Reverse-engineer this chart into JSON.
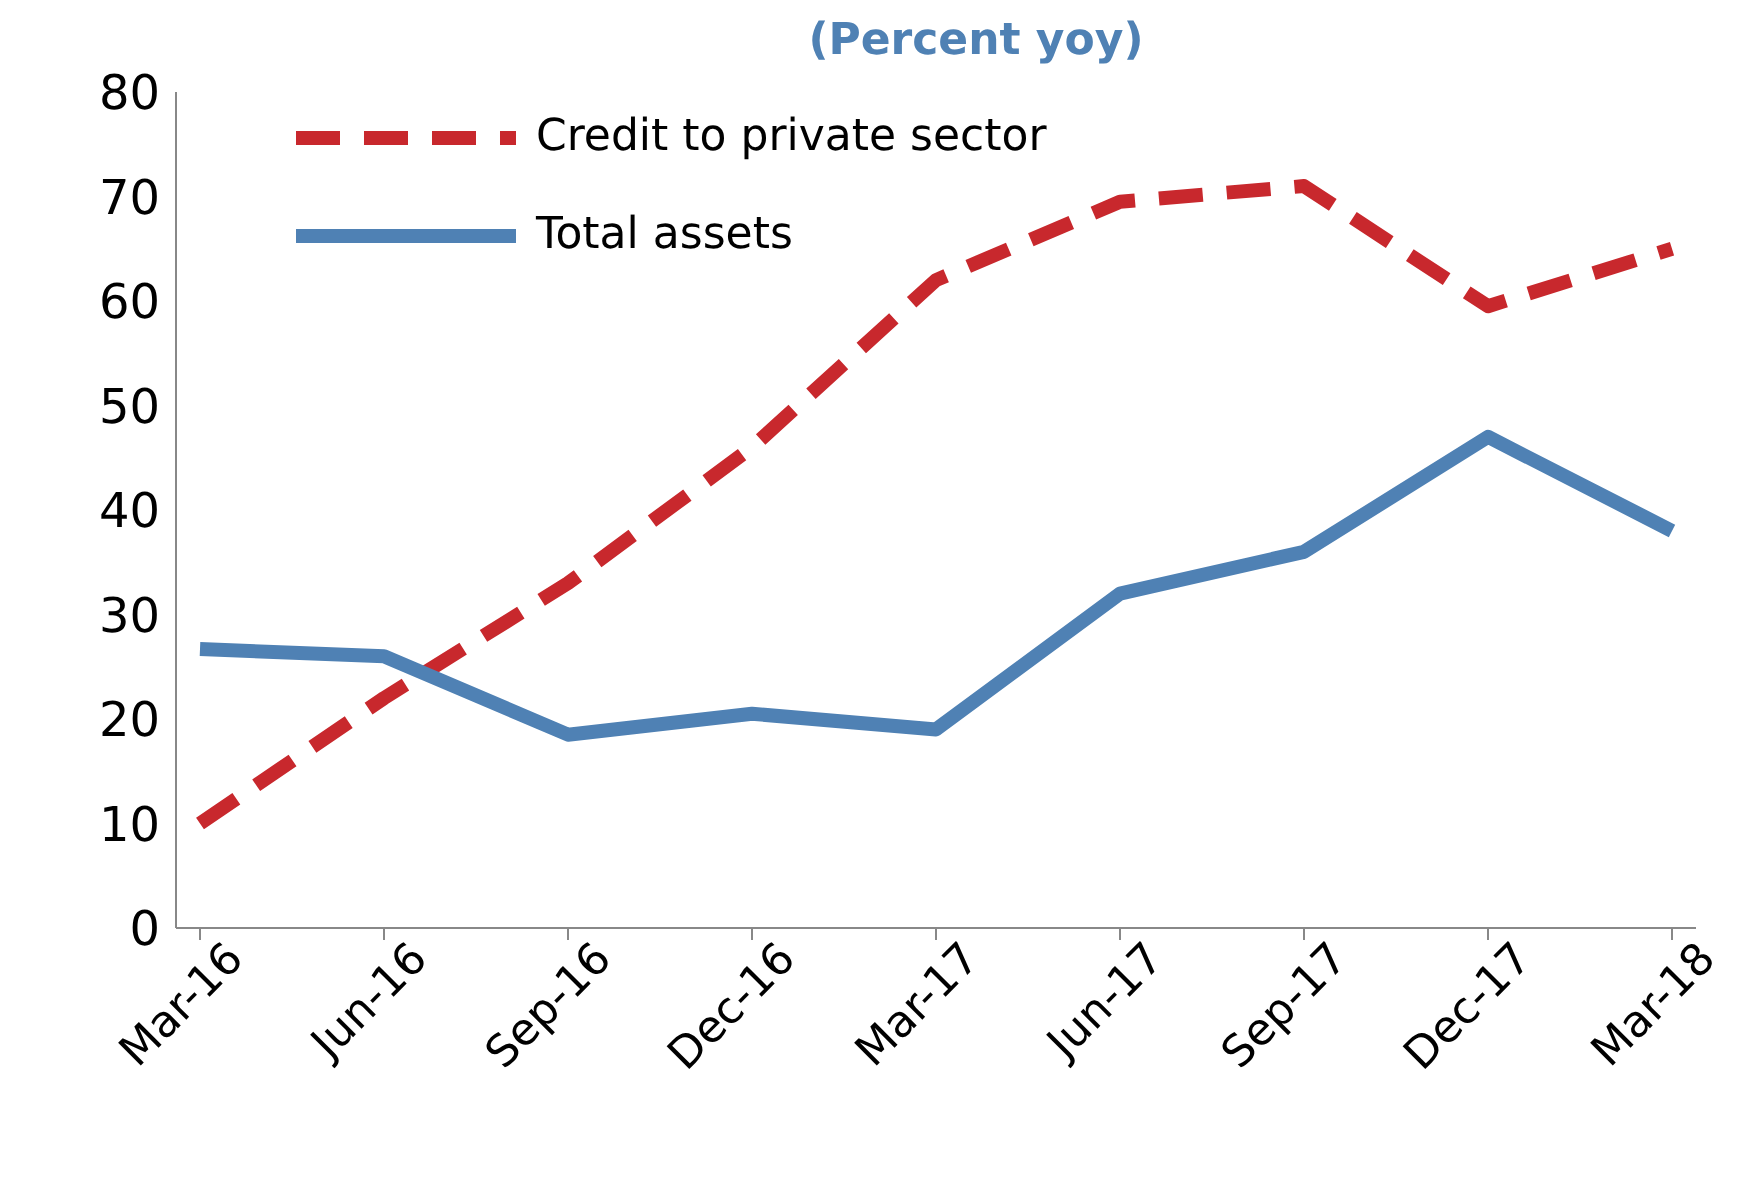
{
  "chart_data": {
    "type": "line",
    "subtitle": "(Percent yoy)",
    "categories": [
      "Mar-16",
      "Jun-16",
      "Sep-16",
      "Dec-16",
      "Mar-17",
      "Jun-17",
      "Sep-17",
      "Dec-17",
      "Mar-18"
    ],
    "series": [
      {
        "name": "Credit to private sector",
        "color": "#c8282d",
        "line_style": "dashed",
        "values": [
          10,
          22,
          33,
          46,
          62,
          69.5,
          71,
          59.5,
          65
        ]
      },
      {
        "name": "Total assets",
        "color": "#4f81b4",
        "line_style": "solid",
        "values": [
          26.7,
          26,
          18.5,
          20.5,
          19,
          32,
          36,
          47,
          38
        ]
      }
    ],
    "ylim": [
      0,
      80
    ],
    "yticks": [
      0,
      10,
      20,
      30,
      40,
      50,
      60,
      70,
      80
    ],
    "grid": false,
    "legend": "top left",
    "marker": "none"
  }
}
